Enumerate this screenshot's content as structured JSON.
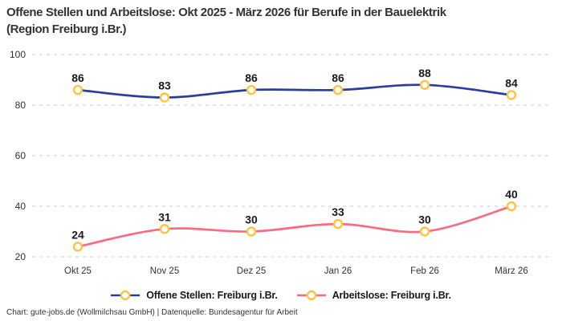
{
  "title": {
    "line1": "Offene Stellen und Arbeitslose: Okt 2025 - März 2026 für Berufe in der Bauelektrik",
    "line2": "(Region Freiburg i.Br.)"
  },
  "chart_data": {
    "type": "line",
    "categories": [
      "Okt 25",
      "Nov 25",
      "Dez 25",
      "Jan 26",
      "Feb 26",
      "März 26"
    ],
    "series": [
      {
        "name": "Offene Stellen: Freiburg i.Br.",
        "values": [
          86,
          83,
          86,
          86,
          88,
          84
        ],
        "color": "#2B3EA0"
      },
      {
        "name": "Arbeitslose: Freiburg i.Br.",
        "values": [
          24,
          31,
          30,
          33,
          30,
          40
        ],
        "color": "#FA6A82"
      }
    ],
    "marker": {
      "fill": "#FFFFFF",
      "stroke": "#FFC33F"
    },
    "yticks": [
      20,
      40,
      60,
      80,
      100
    ],
    "ylim": [
      20,
      100
    ],
    "grid": "horizontal-dashed",
    "gridline_color": "#CCCCCC",
    "legend_position": "bottom",
    "data_labels": true
  },
  "footer": "Chart: gute-jobs.de (Wollmilchsau GmbH) | Datenquelle: Bundesagentur für Arbeit"
}
